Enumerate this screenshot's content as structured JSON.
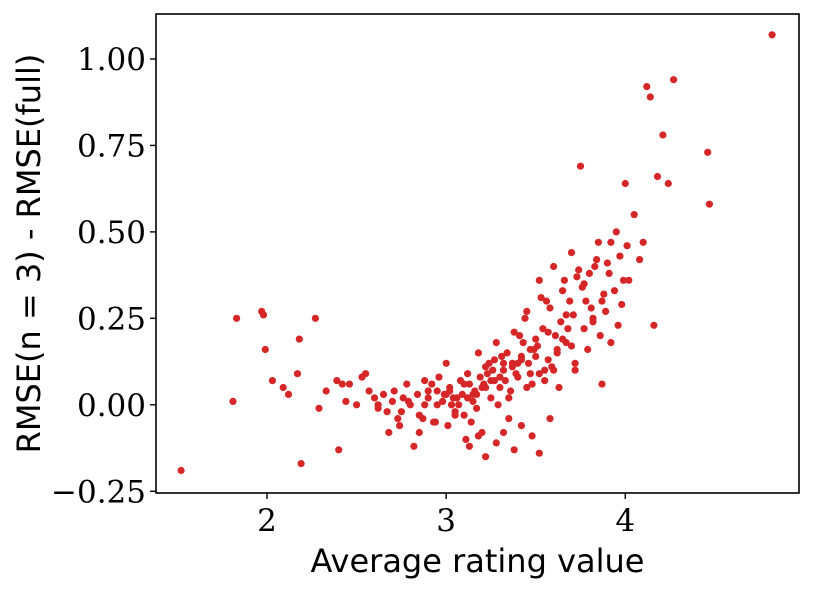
{
  "chart_data": {
    "type": "scatter",
    "title": "",
    "xlabel": "Average rating value",
    "ylabel": "RMSE(n = 3) - RMSE(full)",
    "xlim": [
      1.38,
      4.97
    ],
    "ylim": [
      -0.255,
      1.13
    ],
    "xticks": [
      2,
      3,
      4
    ],
    "xtick_labels": [
      "2",
      "3",
      "4"
    ],
    "yticks": [
      -0.25,
      0,
      0.25,
      0.5,
      0.75,
      1.0
    ],
    "ytick_labels": [
      "−0.25",
      "0.00",
      "0.25",
      "0.50",
      "0.75",
      "1.00"
    ],
    "grid": false,
    "legend": "none",
    "marker_color": "#d62728",
    "series": [
      {
        "x": [
          1.52,
          1.81,
          1.83,
          1.97,
          1.98,
          1.99,
          2.03,
          2.09,
          2.12,
          2.17,
          2.18,
          2.19,
          2.27,
          2.29,
          2.33,
          2.39,
          2.4,
          2.42,
          2.44,
          2.46,
          2.5,
          2.53,
          2.55,
          2.57,
          2.6,
          2.62,
          2.65,
          2.68,
          2.7,
          2.73,
          2.76,
          2.78,
          2.82,
          2.85,
          2.88,
          2.9,
          2.93,
          2.95,
          2.98,
          3.0,
          3.02,
          3.05,
          3.08,
          3.1,
          3.12,
          3.15,
          3.18,
          3.2,
          3.22,
          3.25,
          3.28,
          3.3,
          3.32,
          3.35,
          3.38,
          3.4,
          3.42,
          3.45,
          3.48,
          3.5,
          3.52,
          3.55,
          3.58,
          3.6,
          3.62,
          3.65,
          3.68,
          3.7,
          3.72,
          3.75,
          3.78,
          3.8,
          3.82,
          3.85,
          3.88,
          3.9,
          3.92,
          3.95,
          3.98,
          4.0,
          4.02,
          4.05,
          4.08,
          4.1,
          4.12,
          4.14,
          4.16,
          4.18,
          4.21,
          4.24,
          4.27,
          4.46,
          4.47,
          4.82,
          2.62,
          2.67,
          2.71,
          2.74,
          2.79,
          2.84,
          2.87,
          2.92,
          2.96,
          3.01,
          3.06,
          3.11,
          3.16,
          3.21,
          3.26,
          3.31,
          3.36,
          3.41,
          3.46,
          3.51,
          3.56,
          3.61,
          3.66,
          3.71,
          3.76,
          3.81,
          3.86,
          3.91,
          3.96,
          4.01,
          3.03,
          3.09,
          3.14,
          3.19,
          3.24,
          3.29,
          3.34,
          3.39,
          3.44,
          3.49,
          3.54,
          3.59,
          3.64,
          3.69,
          3.74,
          3.79,
          3.84,
          3.89,
          3.94,
          3.99,
          2.88,
          2.94,
          2.99,
          3.04,
          3.13,
          3.17,
          3.23,
          3.27,
          3.33,
          3.37,
          3.43,
          3.47,
          3.53,
          3.57,
          3.63,
          3.67,
          3.73,
          3.77,
          3.83,
          3.87,
          3.13,
          3.18,
          3.22,
          3.28,
          3.32,
          3.38,
          3.42,
          3.48,
          3.52,
          3.58,
          2.75,
          2.8,
          2.85,
          2.9,
          2.95,
          3.0,
          3.05,
          3.1,
          3.15,
          3.2,
          3.25,
          3.3,
          3.35,
          3.4,
          3.45,
          3.5,
          3.55,
          3.6,
          3.65,
          3.7,
          3.02,
          3.07,
          3.12,
          3.17,
          3.22,
          3.27,
          3.32,
          3.37,
          3.42,
          3.47,
          3.52,
          3.57,
          3.62,
          3.67,
          3.72,
          3.77,
          3.82,
          3.87,
          3.92,
          3.97
        ],
        "y": [
          -0.19,
          0.01,
          0.25,
          0.27,
          0.26,
          0.16,
          0.07,
          0.05,
          0.03,
          0.09,
          0.19,
          -0.17,
          0.25,
          -0.01,
          0.04,
          0.07,
          -0.13,
          0.06,
          0.01,
          0.06,
          0.0,
          0.08,
          0.09,
          0.04,
          0.02,
          -0.01,
          0.03,
          -0.08,
          0.01,
          -0.04,
          0.02,
          0.06,
          -0.12,
          -0.03,
          0.07,
          0.02,
          -0.05,
          0.04,
          0.01,
          0.12,
          0.05,
          -0.02,
          0.07,
          -0.03,
          0.09,
          0.03,
          0.15,
          -0.08,
          0.11,
          0.02,
          0.18,
          0.05,
          0.12,
          -0.04,
          0.21,
          0.08,
          0.14,
          0.27,
          0.06,
          0.19,
          0.36,
          0.1,
          0.28,
          0.4,
          0.15,
          0.33,
          0.22,
          0.44,
          0.12,
          0.69,
          0.3,
          0.38,
          0.25,
          0.47,
          0.32,
          0.41,
          0.18,
          0.5,
          0.29,
          0.64,
          0.36,
          0.55,
          0.42,
          0.47,
          0.92,
          0.89,
          0.23,
          0.66,
          0.78,
          0.64,
          0.94,
          0.73,
          0.58,
          1.07,
          0.0,
          -0.02,
          0.04,
          -0.06,
          0.01,
          0.03,
          -0.04,
          0.06,
          0.08,
          -0.06,
          0.02,
          -0.1,
          0.04,
          0.06,
          0.1,
          0.14,
          0.04,
          0.2,
          0.12,
          0.17,
          0.3,
          0.2,
          0.36,
          0.26,
          0.34,
          0.28,
          0.2,
          0.38,
          0.23,
          0.46,
          0.0,
          0.03,
          -0.05,
          0.08,
          0.12,
          0.0,
          0.15,
          0.09,
          0.25,
          0.16,
          0.22,
          0.11,
          0.24,
          0.3,
          0.39,
          0.16,
          0.42,
          0.27,
          0.33,
          0.36,
          0.0,
          -0.05,
          0.03,
          0.02,
          0.06,
          -0.01,
          0.09,
          0.13,
          0.07,
          0.11,
          0.18,
          0.09,
          0.31,
          0.13,
          0.05,
          0.18,
          0.37,
          0.22,
          0.4,
          0.06,
          -0.12,
          -0.09,
          -0.15,
          -0.11,
          -0.08,
          -0.13,
          -0.06,
          -0.09,
          -0.14,
          -0.04,
          -0.02,
          0.0,
          -0.08,
          0.04,
          0.0,
          0.03,
          -0.03,
          0.06,
          0.01,
          0.05,
          0.07,
          0.08,
          0.02,
          0.12,
          0.05,
          0.14,
          0.07,
          0.1,
          0.19,
          0.17,
          0.04,
          0.0,
          0.02,
          0.03,
          0.05,
          0.07,
          0.1,
          0.12,
          0.13,
          0.16,
          0.09,
          0.21,
          0.16,
          0.26,
          0.1,
          0.35,
          0.24,
          0.3,
          0.47,
          0.43
        ]
      }
    ]
  }
}
